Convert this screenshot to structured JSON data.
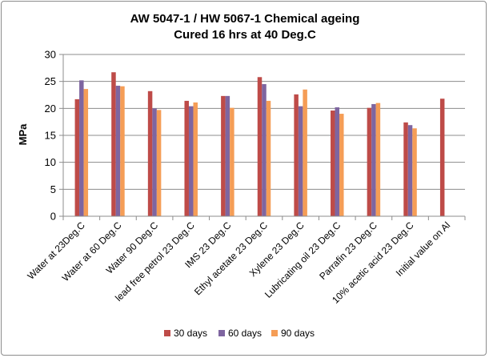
{
  "chart_data": {
    "type": "bar",
    "title": "AW 5047-1 / HW 5067-1 Chemical ageing",
    "subtitle": "Cured 16 hrs at 40 Deg.C",
    "xlabel": "",
    "ylabel": "MPa",
    "ylim": [
      0,
      30
    ],
    "yticks": [
      0,
      5,
      10,
      15,
      20,
      25,
      30
    ],
    "grid": true,
    "legend": "bottom",
    "categories": [
      "Water at 23Deg.C",
      "Water at 60 Deg.C",
      "Water 90 Deg.C",
      "lead free petrol 23 Deg.C",
      "IMS 23 Deg.C",
      "Ethyl acetate 23 Deg.C",
      "Xylene 23 Deg.C",
      "Lubricating oil 23 Deg.C",
      "Parrafin 23 Deg.C",
      "10% acetic acid  23 Deg.C",
      "Initial value on Al"
    ],
    "series": [
      {
        "name": "30 days",
        "color": "#BE4B48",
        "values": [
          21.7,
          26.7,
          23.2,
          21.4,
          22.3,
          25.8,
          22.6,
          19.6,
          20.1,
          17.4,
          21.8
        ]
      },
      {
        "name": "60 days",
        "color": "#7E65A0",
        "values": [
          25.2,
          24.2,
          20.0,
          20.4,
          22.3,
          24.5,
          20.4,
          20.2,
          20.8,
          16.9,
          null
        ]
      },
      {
        "name": "90 days",
        "color": "#F59D56",
        "values": [
          23.6,
          24.1,
          19.7,
          21.1,
          20.1,
          21.4,
          23.5,
          19.0,
          21.0,
          16.3,
          null
        ]
      }
    ]
  }
}
